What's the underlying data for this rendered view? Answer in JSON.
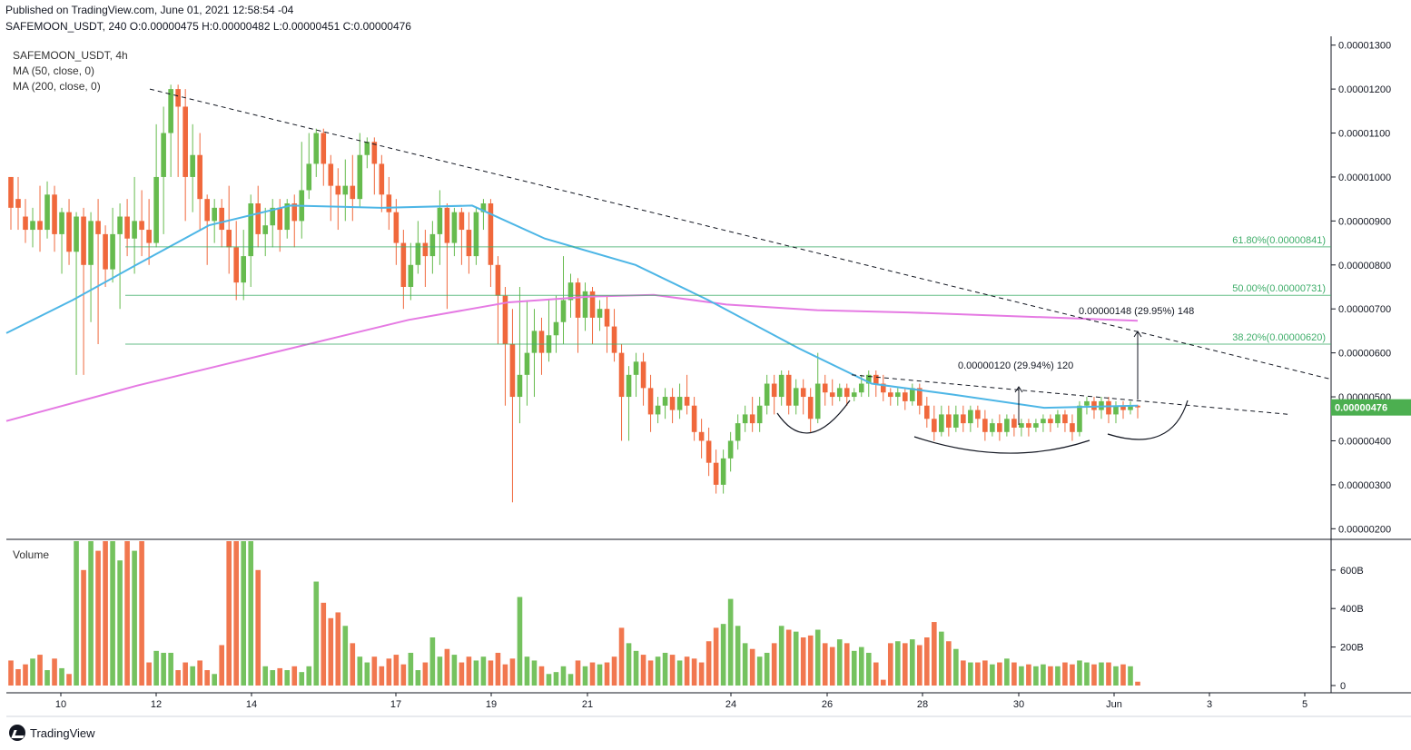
{
  "header": {
    "published": "Published on TradingView.com, June 01, 2021 12:58:54 -04",
    "ohlc": "SAFEMOON_USDT, 240 O:0.00000475 H:0.00000482 L:0.00000451 C:0.00000476"
  },
  "legend": {
    "symbol": "SAFEMOON_USDT, 4h",
    "ma50": "MA (50, close, 0)",
    "ma200": "MA (200, close, 0)",
    "volume": "Volume"
  },
  "brand": "TradingView",
  "colors": {
    "up": "#66bb4e",
    "down": "#f0683c",
    "ma50": "#4db6e6",
    "ma200": "#e57ae3",
    "fib": "#3fae6a",
    "price_tag": "#4caf50"
  },
  "chart_data": {
    "type": "candlestick",
    "price_axis": {
      "ylim": [
        1.8e-06,
        1.32e-05
      ],
      "ticks": [
        "0.00001300",
        "0.00001200",
        "0.00001100",
        "0.00001000",
        "0.00000900",
        "0.00000800",
        "0.00000700",
        "0.00000600",
        "0.00000500",
        "0.00000400",
        "0.00000300",
        "0.00000200"
      ]
    },
    "volume_axis": {
      "ylim": [
        0,
        750
      ],
      "ticks": [
        "600B",
        "400B",
        "200B",
        "0"
      ]
    },
    "x_axis": {
      "ticks": [
        "10",
        "12",
        "14",
        "17",
        "19",
        "21",
        "24",
        "26",
        "28",
        "30",
        "Jun",
        "3",
        "5"
      ]
    },
    "last_price": "0.00000476",
    "fib_levels": [
      {
        "label": "61.80%(0.00000841)",
        "value": 8.41e-06
      },
      {
        "label": "50.00%(0.00000731)",
        "value": 7.31e-06
      },
      {
        "label": "38.20%(0.00000620)",
        "value": 6.2e-06
      }
    ],
    "annotations": [
      {
        "text": "0.00000148 (29.95%) 148"
      },
      {
        "text": "0.00000120 (29.94%) 120"
      }
    ],
    "candles_summary": "4h candles from 9 May to 1 Jun 2021; high 0.00001200 (May 12), low 0.00000260 wick (May 19)",
    "candles": [
      [
        1.0,
        0.93,
        1.0,
        0.88,
        130
      ],
      [
        0.95,
        0.93,
        1.0,
        0.88,
        85
      ],
      [
        0.91,
        0.88,
        0.95,
        0.85,
        110
      ],
      [
        0.88,
        0.9,
        0.93,
        0.84,
        140
      ],
      [
        0.9,
        0.88,
        0.98,
        0.83,
        160
      ],
      [
        0.88,
        0.96,
        0.99,
        0.86,
        80
      ],
      [
        0.96,
        0.87,
        0.98,
        0.83,
        140
      ],
      [
        0.87,
        0.92,
        0.93,
        0.78,
        90
      ],
      [
        0.92,
        0.83,
        0.95,
        0.8,
        60
      ],
      [
        0.83,
        0.91,
        0.92,
        0.55,
        900
      ],
      [
        0.91,
        0.8,
        0.93,
        0.55,
        600
      ],
      [
        0.8,
        0.9,
        0.92,
        0.67,
        900
      ],
      [
        0.9,
        0.87,
        0.95,
        0.62,
        700
      ],
      [
        0.87,
        0.79,
        0.89,
        0.75,
        900
      ],
      [
        0.79,
        0.87,
        0.93,
        0.76,
        900
      ],
      [
        0.87,
        0.91,
        0.94,
        0.7,
        650
      ],
      [
        0.91,
        0.86,
        0.95,
        0.82,
        900
      ],
      [
        0.86,
        0.9,
        1.0,
        0.78,
        700
      ],
      [
        0.9,
        0.88,
        0.97,
        0.82,
        900
      ],
      [
        0.88,
        0.85,
        0.95,
        0.8,
        120
      ],
      [
        0.85,
        1.0,
        1.12,
        0.84,
        180
      ],
      [
        1.0,
        1.1,
        1.16,
        0.87,
        170
      ],
      [
        1.1,
        1.2,
        1.21,
        1.0,
        170
      ],
      [
        1.2,
        1.16,
        1.21,
        1.0,
        80
      ],
      [
        1.16,
        1.0,
        1.2,
        0.9,
        120
      ],
      [
        1.0,
        1.05,
        1.12,
        0.92,
        100
      ],
      [
        1.05,
        0.95,
        1.1,
        0.88,
        130
      ],
      [
        0.95,
        0.9,
        0.96,
        0.8,
        80
      ],
      [
        0.9,
        0.93,
        0.95,
        0.85,
        60
      ],
      [
        0.93,
        0.88,
        0.95,
        0.84,
        210
      ],
      [
        0.88,
        0.84,
        0.98,
        0.78,
        900
      ],
      [
        0.84,
        0.76,
        0.9,
        0.72,
        900
      ],
      [
        0.76,
        0.82,
        0.88,
        0.72,
        900
      ],
      [
        0.82,
        0.94,
        0.96,
        0.75,
        900
      ],
      [
        0.94,
        0.87,
        0.98,
        0.84,
        600
      ],
      [
        0.87,
        0.89,
        0.93,
        0.82,
        100
      ],
      [
        0.89,
        0.93,
        0.95,
        0.84,
        80
      ],
      [
        0.93,
        0.88,
        0.95,
        0.83,
        90
      ],
      [
        0.88,
        0.94,
        0.95,
        0.86,
        80
      ],
      [
        0.94,
        0.9,
        0.96,
        0.84,
        100
      ],
      [
        0.9,
        0.97,
        1.08,
        0.86,
        70
      ],
      [
        0.97,
        1.03,
        1.1,
        0.95,
        100
      ],
      [
        1.03,
        1.1,
        1.11,
        1.0,
        540
      ],
      [
        1.1,
        1.03,
        1.11,
        0.98,
        430
      ],
      [
        1.03,
        0.98,
        1.05,
        0.9,
        350
      ],
      [
        0.98,
        0.96,
        1.02,
        0.88,
        380
      ],
      [
        0.96,
        0.98,
        1.04,
        0.9,
        310
      ],
      [
        0.98,
        0.95,
        1.05,
        0.9,
        220
      ],
      [
        0.95,
        1.05,
        1.1,
        0.93,
        150
      ],
      [
        1.05,
        1.08,
        1.09,
        1.02,
        120
      ],
      [
        1.08,
        1.03,
        1.09,
        0.96,
        150
      ],
      [
        1.03,
        0.96,
        1.05,
        0.92,
        100
      ],
      [
        0.96,
        0.92,
        1.0,
        0.88,
        140
      ],
      [
        0.92,
        0.85,
        0.95,
        0.8,
        160
      ],
      [
        0.85,
        0.75,
        0.88,
        0.7,
        110
      ],
      [
        0.75,
        0.8,
        0.85,
        0.72,
        170
      ],
      [
        0.8,
        0.85,
        0.9,
        0.78,
        80
      ],
      [
        0.85,
        0.82,
        0.88,
        0.75,
        120
      ],
      [
        0.82,
        0.87,
        0.9,
        0.78,
        250
      ],
      [
        0.87,
        0.93,
        0.97,
        0.8,
        150
      ],
      [
        0.93,
        0.85,
        0.94,
        0.7,
        190
      ],
      [
        0.85,
        0.92,
        0.93,
        0.82,
        160
      ],
      [
        0.92,
        0.88,
        0.93,
        0.8,
        120
      ],
      [
        0.88,
        0.82,
        0.92,
        0.78,
        150
      ],
      [
        0.82,
        0.92,
        0.93,
        0.8,
        130
      ],
      [
        0.92,
        0.94,
        0.95,
        0.88,
        150
      ],
      [
        0.94,
        0.8,
        0.95,
        0.75,
        130
      ],
      [
        0.8,
        0.73,
        0.82,
        0.62,
        170
      ],
      [
        0.73,
        0.62,
        0.75,
        0.48,
        110
      ],
      [
        0.62,
        0.5,
        0.7,
        0.26,
        140
      ],
      [
        0.5,
        0.55,
        0.75,
        0.44,
        460
      ],
      [
        0.55,
        0.6,
        0.72,
        0.48,
        150
      ],
      [
        0.6,
        0.65,
        0.7,
        0.5,
        130
      ],
      [
        0.65,
        0.6,
        0.68,
        0.55,
        100
      ],
      [
        0.6,
        0.64,
        0.72,
        0.58,
        60
      ],
      [
        0.64,
        0.67,
        0.73,
        0.6,
        70
      ],
      [
        0.67,
        0.72,
        0.82,
        0.62,
        100
      ],
      [
        0.72,
        0.76,
        0.78,
        0.68,
        60
      ],
      [
        0.76,
        0.68,
        0.77,
        0.6,
        130
      ],
      [
        0.68,
        0.74,
        0.76,
        0.65,
        100
      ],
      [
        0.74,
        0.68,
        0.75,
        0.62,
        120
      ],
      [
        0.68,
        0.7,
        0.72,
        0.65,
        110
      ],
      [
        0.7,
        0.66,
        0.73,
        0.6,
        120
      ],
      [
        0.66,
        0.6,
        0.7,
        0.58,
        150
      ],
      [
        0.6,
        0.5,
        0.62,
        0.4,
        300
      ],
      [
        0.5,
        0.55,
        0.57,
        0.4,
        220
      ],
      [
        0.55,
        0.58,
        0.6,
        0.5,
        180
      ],
      [
        0.58,
        0.52,
        0.6,
        0.48,
        160
      ],
      [
        0.52,
        0.46,
        0.55,
        0.42,
        130
      ],
      [
        0.46,
        0.48,
        0.5,
        0.44,
        150
      ],
      [
        0.48,
        0.5,
        0.52,
        0.45,
        170
      ],
      [
        0.5,
        0.47,
        0.52,
        0.44,
        160
      ],
      [
        0.47,
        0.5,
        0.53,
        0.45,
        130
      ],
      [
        0.5,
        0.48,
        0.55,
        0.46,
        150
      ],
      [
        0.48,
        0.42,
        0.5,
        0.4,
        140
      ],
      [
        0.42,
        0.4,
        0.45,
        0.36,
        120
      ],
      [
        0.4,
        0.35,
        0.43,
        0.32,
        230
      ],
      [
        0.35,
        0.3,
        0.38,
        0.28,
        300
      ],
      [
        0.3,
        0.36,
        0.38,
        0.28,
        320
      ],
      [
        0.36,
        0.4,
        0.42,
        0.33,
        450
      ],
      [
        0.4,
        0.44,
        0.46,
        0.38,
        310
      ],
      [
        0.44,
        0.46,
        0.48,
        0.42,
        220
      ],
      [
        0.46,
        0.44,
        0.5,
        0.42,
        190
      ],
      [
        0.44,
        0.48,
        0.5,
        0.42,
        150
      ],
      [
        0.48,
        0.53,
        0.55,
        0.46,
        170
      ],
      [
        0.53,
        0.5,
        0.55,
        0.46,
        220
      ],
      [
        0.5,
        0.55,
        0.56,
        0.48,
        310
      ],
      [
        0.55,
        0.48,
        0.56,
        0.46,
        290
      ],
      [
        0.48,
        0.52,
        0.54,
        0.46,
        280
      ],
      [
        0.52,
        0.5,
        0.54,
        0.46,
        250
      ],
      [
        0.5,
        0.45,
        0.52,
        0.42,
        260
      ],
      [
        0.45,
        0.53,
        0.6,
        0.44,
        290
      ],
      [
        0.53,
        0.51,
        0.55,
        0.48,
        220
      ],
      [
        0.51,
        0.5,
        0.54,
        0.48,
        200
      ],
      [
        0.5,
        0.52,
        0.53,
        0.49,
        240
      ],
      [
        0.52,
        0.5,
        0.53,
        0.48,
        220
      ],
      [
        0.5,
        0.51,
        0.52,
        0.49,
        180
      ],
      [
        0.51,
        0.53,
        0.55,
        0.5,
        200
      ],
      [
        0.53,
        0.55,
        0.56,
        0.5,
        170
      ],
      [
        0.55,
        0.53,
        0.56,
        0.5,
        120
      ],
      [
        0.53,
        0.51,
        0.55,
        0.49,
        30
      ],
      [
        0.51,
        0.5,
        0.52,
        0.48,
        220
      ],
      [
        0.5,
        0.51,
        0.52,
        0.48,
        230
      ],
      [
        0.51,
        0.49,
        0.52,
        0.47,
        220
      ],
      [
        0.49,
        0.52,
        0.53,
        0.48,
        240
      ],
      [
        0.52,
        0.48,
        0.53,
        0.46,
        210
      ],
      [
        0.48,
        0.45,
        0.5,
        0.43,
        250
      ],
      [
        0.45,
        0.42,
        0.48,
        0.4,
        330
      ],
      [
        0.42,
        0.46,
        0.48,
        0.41,
        280
      ],
      [
        0.46,
        0.43,
        0.48,
        0.41,
        230
      ],
      [
        0.43,
        0.46,
        0.48,
        0.42,
        190
      ],
      [
        0.46,
        0.44,
        0.48,
        0.42,
        130
      ],
      [
        0.44,
        0.47,
        0.48,
        0.42,
        120
      ],
      [
        0.47,
        0.45,
        0.48,
        0.43,
        120
      ],
      [
        0.45,
        0.42,
        0.47,
        0.4,
        130
      ],
      [
        0.42,
        0.44,
        0.45,
        0.41,
        110
      ],
      [
        0.44,
        0.42,
        0.46,
        0.4,
        120
      ],
      [
        0.42,
        0.45,
        0.46,
        0.41,
        140
      ],
      [
        0.45,
        0.43,
        0.46,
        0.41,
        120
      ],
      [
        0.43,
        0.44,
        0.45,
        0.41,
        100
      ],
      [
        0.44,
        0.43,
        0.45,
        0.41,
        110
      ],
      [
        0.43,
        0.44,
        0.45,
        0.42,
        100
      ],
      [
        0.44,
        0.45,
        0.46,
        0.42,
        110
      ],
      [
        0.45,
        0.44,
        0.46,
        0.42,
        100
      ],
      [
        0.44,
        0.46,
        0.47,
        0.43,
        100
      ],
      [
        0.46,
        0.44,
        0.47,
        0.42,
        120
      ],
      [
        0.44,
        0.42,
        0.46,
        0.4,
        110
      ],
      [
        0.42,
        0.48,
        0.49,
        0.41,
        130
      ],
      [
        0.48,
        0.49,
        0.5,
        0.46,
        120
      ],
      [
        0.49,
        0.47,
        0.5,
        0.45,
        110
      ],
      [
        0.47,
        0.49,
        0.5,
        0.45,
        120
      ],
      [
        0.49,
        0.46,
        0.5,
        0.44,
        120
      ],
      [
        0.46,
        0.48,
        0.49,
        0.44,
        100
      ],
      [
        0.48,
        0.47,
        0.49,
        0.45,
        110
      ],
      [
        0.47,
        0.48,
        0.49,
        0.46,
        100
      ],
      [
        0.48,
        0.476,
        0.482,
        0.451,
        20
      ]
    ]
  }
}
